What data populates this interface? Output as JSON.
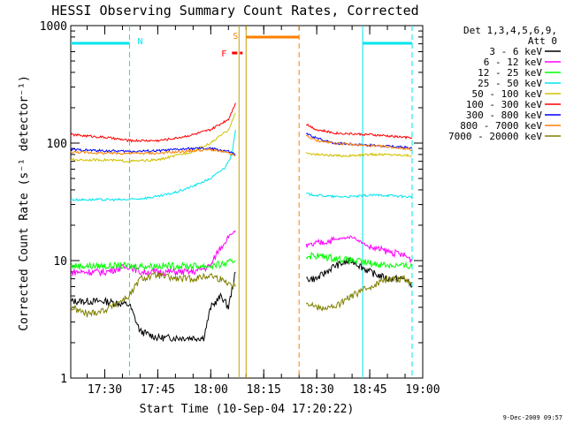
{
  "chart_data": {
    "type": "line",
    "title": "HESSI Observing Summary Count Rates, Corrected",
    "ylabel": "Corrected Count Rate (s⁻¹ detector⁻¹)",
    "xlabel": "Start Time (10-Sep-04 17:20:22)",
    "y_scale": "log",
    "ylim": [
      1,
      1000
    ],
    "xlim": [
      "17:20:22",
      "19:00"
    ],
    "x_ticks": [
      "17:30",
      "17:45",
      "18:00",
      "18:15",
      "18:30",
      "18:45",
      "19:00"
    ],
    "y_ticks": [
      "1",
      "10",
      "100",
      "1000"
    ],
    "legend_title": [
      "Det 1,3,4,5,6,9,",
      "Att 0"
    ],
    "legend_position": "right",
    "timestamp": "9-Dec-2009 09:57",
    "flag_labels": {
      "night": "N",
      "saa": "S",
      "flare": "F"
    },
    "flag_bars": [
      {
        "flag": "night",
        "color": "#00e5ee",
        "start": "17:20:22",
        "end": "17:37"
      },
      {
        "flag": "saa",
        "color": "#ff7f00",
        "start": "18:10",
        "end": "18:25"
      },
      {
        "flag": "night",
        "color": "#00e5ee",
        "start": "18:43",
        "end": "18:57"
      },
      {
        "flag": "flare",
        "color": "#ff0000",
        "start": "18:06",
        "end": "18:09",
        "style": "dashed"
      }
    ],
    "markers": [
      {
        "time": "17:37",
        "color": "#00e5ee",
        "style": "dashed"
      },
      {
        "time": "18:43",
        "color": "#00e5ee",
        "style": "solid"
      },
      {
        "time": "18:57",
        "color": "#00e5ee",
        "style": "dashed"
      },
      {
        "time": "18:08",
        "color": "#c8a000",
        "style": "solid"
      },
      {
        "time": "18:10",
        "color": "#c8a000",
        "style": "solid"
      },
      {
        "time": "18:25",
        "color": "#ff7f00",
        "style": "dashed"
      }
    ],
    "series": [
      {
        "name": "3 - 6 keV",
        "color": "#000000",
        "segments": [
          {
            "x": [
              "17:20:22",
              "17:30",
              "17:37",
              "17:40",
              "17:45",
              "17:50",
              "17:55",
              "17:58",
              "18:00",
              "18:03",
              "18:05",
              "18:07"
            ],
            "y": [
              4.5,
              4.5,
              4.2,
              2.5,
              2.2,
              2.2,
              2.2,
              2.2,
              4,
              5,
              4,
              8
            ]
          },
          {
            "x": [
              "18:27",
              "18:30",
              "18:35",
              "18:40",
              "18:45",
              "18:50",
              "18:55",
              "18:57"
            ],
            "y": [
              7,
              7,
              9,
              10,
              8,
              7,
              7,
              6
            ]
          }
        ]
      },
      {
        "name": "6 - 12 keV",
        "color": "#ff00ff",
        "segments": [
          {
            "x": [
              "17:20:22",
              "17:30",
              "17:37",
              "17:40",
              "17:45",
              "17:50",
              "17:55",
              "18:00",
              "18:02",
              "18:05",
              "18:07"
            ],
            "y": [
              8,
              8,
              9,
              8,
              8,
              8,
              8,
              9,
              12,
              16,
              18
            ]
          },
          {
            "x": [
              "18:27",
              "18:30",
              "18:35",
              "18:40",
              "18:45",
              "18:50",
              "18:55",
              "18:57"
            ],
            "y": [
              13,
              14,
              15,
              16,
              13,
              12,
              11,
              10
            ]
          }
        ]
      },
      {
        "name": "12 - 25 keV",
        "color": "#00ff00",
        "segments": [
          {
            "x": [
              "17:20:22",
              "17:30",
              "17:37",
              "17:45",
              "17:50",
              "17:55",
              "18:00",
              "18:05",
              "18:07"
            ],
            "y": [
              9,
              9,
              9,
              9,
              9,
              9,
              9,
              9.5,
              10
            ]
          },
          {
            "x": [
              "18:27",
              "18:30",
              "18:35",
              "18:40",
              "18:45",
              "18:50",
              "18:55",
              "18:57"
            ],
            "y": [
              11,
              11,
              10.5,
              10,
              9.5,
              9.2,
              9,
              9
            ]
          }
        ]
      },
      {
        "name": "25 - 50 keV",
        "color": "#00e5ee",
        "segments": [
          {
            "x": [
              "17:20:22",
              "17:30",
              "17:37",
              "17:45",
              "17:50",
              "17:55",
              "18:00",
              "18:04",
              "18:06",
              "18:07"
            ],
            "y": [
              33,
              33,
              33,
              35,
              38,
              43,
              50,
              62,
              80,
              130
            ]
          },
          {
            "x": [
              "18:27",
              "18:30",
              "18:35",
              "18:40",
              "18:45",
              "18:50",
              "18:55",
              "18:57"
            ],
            "y": [
              37,
              36,
              35,
              35,
              36,
              36,
              35,
              35
            ]
          }
        ]
      },
      {
        "name": "50 - 100 keV",
        "color": "#d0c000",
        "segments": [
          {
            "x": [
              "17:20:22",
              "17:30",
              "17:37",
              "17:45",
              "17:50",
              "17:55",
              "18:00",
              "18:05",
              "18:07"
            ],
            "y": [
              72,
              72,
              70,
              72,
              78,
              85,
              100,
              130,
              180
            ]
          },
          {
            "x": [
              "18:27",
              "18:30",
              "18:35",
              "18:40",
              "18:45",
              "18:50",
              "18:55",
              "18:57"
            ],
            "y": [
              82,
              80,
              78,
              78,
              80,
              80,
              79,
              78
            ]
          }
        ]
      },
      {
        "name": "100 - 300 keV",
        "color": "#ff0000",
        "segments": [
          {
            "x": [
              "17:20:22",
              "17:30",
              "17:37",
              "17:45",
              "17:50",
              "17:55",
              "18:00",
              "18:05",
              "18:07"
            ],
            "y": [
              118,
              112,
              105,
              105,
              110,
              118,
              130,
              160,
              220
            ]
          },
          {
            "x": [
              "18:27",
              "18:30",
              "18:35",
              "18:40",
              "18:45",
              "18:50",
              "18:55",
              "18:57"
            ],
            "y": [
              145,
              130,
              122,
              120,
              118,
              115,
              112,
              110
            ]
          }
        ]
      },
      {
        "name": "300 - 800 keV",
        "color": "#0000ff",
        "segments": [
          {
            "x": [
              "17:20:22",
              "17:30",
              "17:37",
              "17:45",
              "17:50",
              "17:55",
              "18:00",
              "18:05",
              "18:07"
            ],
            "y": [
              88,
              86,
              85,
              86,
              88,
              90,
              90,
              85,
              80
            ]
          },
          {
            "x": [
              "18:27",
              "18:30",
              "18:35",
              "18:40",
              "18:45",
              "18:50",
              "18:55",
              "18:57"
            ],
            "y": [
              120,
              110,
              100,
              98,
              96,
              94,
              92,
              90
            ]
          }
        ]
      },
      {
        "name": "800 - 7000 keV",
        "color": "#ff7f00",
        "segments": [
          {
            "x": [
              "17:20:22",
              "17:30",
              "17:37",
              "17:45",
              "17:50",
              "17:55",
              "18:00",
              "18:05",
              "18:07"
            ],
            "y": [
              84,
              82,
              82,
              82,
              84,
              86,
              88,
              82,
              78
            ]
          },
          {
            "x": [
              "18:27",
              "18:30",
              "18:35",
              "18:40",
              "18:45",
              "18:50",
              "18:55",
              "18:57"
            ],
            "y": [
              115,
              105,
              100,
              97,
              95,
              93,
              90,
              88
            ]
          }
        ]
      },
      {
        "name": "7000 - 20000 keV",
        "color": "#808000",
        "segments": [
          {
            "x": [
              "17:20:22",
              "17:25",
              "17:30",
              "17:37",
              "17:40",
              "17:45",
              "17:50",
              "17:55",
              "18:00",
              "18:05",
              "18:07"
            ],
            "y": [
              4,
              3.5,
              3.8,
              5,
              7,
              7.5,
              7,
              7,
              7.5,
              6.5,
              6
            ]
          },
          {
            "x": [
              "18:27",
              "18:30",
              "18:35",
              "18:40",
              "18:45",
              "18:50",
              "18:55",
              "18:57"
            ],
            "y": [
              4.5,
              4,
              4,
              5,
              6,
              7,
              7,
              6.5
            ]
          }
        ]
      }
    ]
  }
}
